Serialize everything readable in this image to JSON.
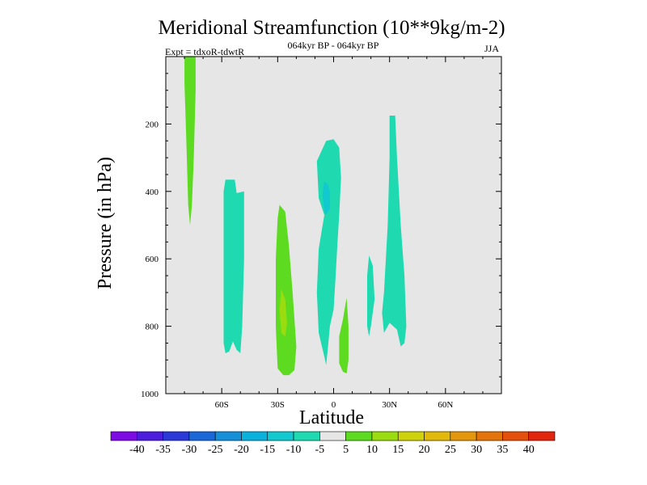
{
  "chart_data": {
    "type": "contour",
    "title": "Meridional Streamfunction (10**9kg/m-2)",
    "subtitle": "064kyr BP - 064kyr BP",
    "left_annotation": "Expt = tdxoR-tdwtR",
    "right_annotation": "JJA",
    "xlabel": "Latitude",
    "ylabel": "Pressure (in hPa)",
    "xlim": [
      -90,
      90
    ],
    "ylim": [
      1000,
      0
    ],
    "y_reversed": true,
    "x_ticks": [
      {
        "value": -60,
        "label": "60S"
      },
      {
        "value": -30,
        "label": "30S"
      },
      {
        "value": 0,
        "label": "0"
      },
      {
        "value": 30,
        "label": "30N"
      },
      {
        "value": 60,
        "label": "60N"
      }
    ],
    "y_ticks": [
      {
        "value": 200,
        "label": "200"
      },
      {
        "value": 400,
        "label": "400"
      },
      {
        "value": 600,
        "label": "600"
      },
      {
        "value": 800,
        "label": "800"
      },
      {
        "value": 1000,
        "label": "1000"
      }
    ],
    "background_color": "#e6e6e6",
    "levels": [
      -40,
      -35,
      -30,
      -25,
      -20,
      -15,
      -10,
      -5,
      5,
      10,
      15,
      20,
      25,
      30,
      35,
      40
    ],
    "colorbar_colors": [
      "#7d0be4",
      "#4c1ddd",
      "#2b3ad6",
      "#1a67d8",
      "#1590d8",
      "#0bb1dd",
      "#12c9cf",
      "#1fd9b0",
      "#e6e6e6",
      "#5ddb21",
      "#9bdc10",
      "#cfd20b",
      "#e2b80b",
      "#e4970c",
      "#e3740c",
      "#e4500c",
      "#e2260e"
    ],
    "regions": [
      {
        "label": "positive 5-10 cell near 75S",
        "color": "#5ddb21",
        "polygon": [
          [
            -80,
            0
          ],
          [
            -74,
            0
          ],
          [
            -74,
            100
          ],
          [
            -75,
            300
          ],
          [
            -76,
            440
          ],
          [
            -77,
            500
          ],
          [
            -78,
            440
          ],
          [
            -79,
            250
          ],
          [
            -80,
            80
          ]
        ]
      },
      {
        "label": "negative -10 to -5 cell near 55S",
        "color": "#1fd9b0",
        "polygon": [
          [
            -58,
            365
          ],
          [
            -53,
            365
          ],
          [
            -52,
            405
          ],
          [
            -48,
            400
          ],
          [
            -48,
            600
          ],
          [
            -49,
            800
          ],
          [
            -50,
            880
          ],
          [
            -52,
            870
          ],
          [
            -54,
            845
          ],
          [
            -56,
            875
          ],
          [
            -58,
            880
          ],
          [
            -59,
            850
          ],
          [
            -59,
            400
          ]
        ]
      },
      {
        "label": "positive 5-10 cell near 27S",
        "color": "#5ddb21",
        "polygon": [
          [
            -29,
            440
          ],
          [
            -26,
            460
          ],
          [
            -24,
            560
          ],
          [
            -22,
            700
          ],
          [
            -20,
            860
          ],
          [
            -21,
            930
          ],
          [
            -24,
            945
          ],
          [
            -27,
            945
          ],
          [
            -30,
            925
          ],
          [
            -31,
            800
          ],
          [
            -31,
            600
          ],
          [
            -30,
            480
          ]
        ]
      },
      {
        "label": "positive 10-15 core near 27S",
        "color": "#9bdc10",
        "polygon": [
          [
            -28,
            690
          ],
          [
            -26,
            720
          ],
          [
            -25,
            790
          ],
          [
            -26,
            830
          ],
          [
            -28,
            820
          ],
          [
            -29,
            750
          ]
        ]
      },
      {
        "label": "negative -10 to -5 cell near 3S",
        "color": "#1fd9b0",
        "polygon": [
          [
            -4,
            250
          ],
          [
            0,
            245
          ],
          [
            3,
            270
          ],
          [
            4,
            360
          ],
          [
            3,
            470
          ],
          [
            2,
            560
          ],
          [
            1,
            660
          ],
          [
            0,
            750
          ],
          [
            -2,
            800
          ],
          [
            -3,
            860
          ],
          [
            -4,
            915
          ],
          [
            -5,
            890
          ],
          [
            -8,
            820
          ],
          [
            -9,
            700
          ],
          [
            -8,
            570
          ],
          [
            -5,
            470
          ],
          [
            -8,
            420
          ],
          [
            -9,
            310
          ]
        ]
      },
      {
        "label": "negative -15 to -10 core near 3S",
        "color": "#12c9cf",
        "polygon": [
          [
            -5,
            370
          ],
          [
            -3,
            380
          ],
          [
            -2,
            400
          ],
          [
            -2,
            450
          ],
          [
            -4,
            470
          ],
          [
            -5,
            460
          ],
          [
            -6,
            410
          ]
        ]
      },
      {
        "label": "positive 5-10 cell near 6N",
        "color": "#5ddb21",
        "polygon": [
          [
            7,
            715
          ],
          [
            8,
            800
          ],
          [
            8,
            900
          ],
          [
            7,
            940
          ],
          [
            5,
            935
          ],
          [
            3,
            910
          ],
          [
            3,
            830
          ],
          [
            5,
            780
          ]
        ]
      },
      {
        "label": "negative -10 to -5 cell near 20N",
        "color": "#1fd9b0",
        "polygon": [
          [
            19,
            590
          ],
          [
            21,
            620
          ],
          [
            22,
            720
          ],
          [
            20,
            800
          ],
          [
            19,
            830
          ],
          [
            18,
            800
          ],
          [
            18,
            650
          ]
        ]
      },
      {
        "label": "negative -10 to -5 cell near 31N",
        "color": "#1fd9b0",
        "polygon": [
          [
            30,
            175
          ],
          [
            33,
            175
          ],
          [
            34,
            300
          ],
          [
            36,
            500
          ],
          [
            38,
            650
          ],
          [
            39,
            800
          ],
          [
            38,
            850
          ],
          [
            36,
            860
          ],
          [
            34,
            810
          ],
          [
            30,
            790
          ],
          [
            27,
            820
          ],
          [
            26,
            760
          ],
          [
            27,
            700
          ],
          [
            29,
            500
          ],
          [
            30,
            300
          ]
        ]
      }
    ]
  }
}
